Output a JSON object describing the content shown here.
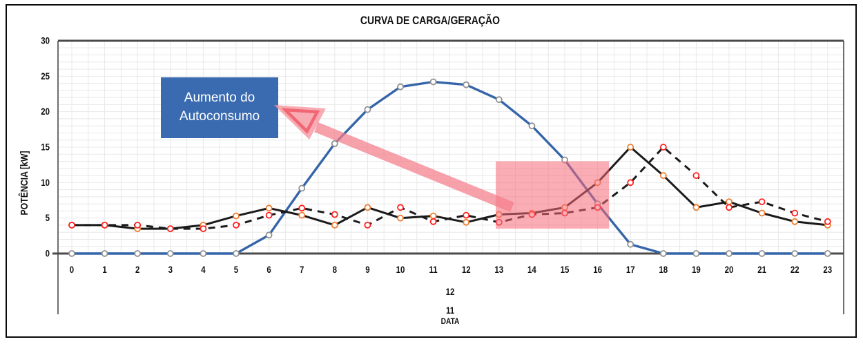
{
  "chart_data": {
    "type": "line",
    "title": "CURVA DE CARGA/GERAÇÃO",
    "x_axis": {
      "title": "DATA",
      "ticks": [
        "0",
        "1",
        "2",
        "3",
        "4",
        "5",
        "6",
        "7",
        "8",
        "9",
        "10",
        "11",
        "12",
        "13",
        "14",
        "15",
        "16",
        "17",
        "18",
        "19",
        "20",
        "21",
        "22",
        "23"
      ],
      "sublabels": [
        "12",
        "11"
      ]
    },
    "y_axis": {
      "title": "POTÊNCIA [kW]",
      "ticks": [
        "0",
        "5",
        "10",
        "15",
        "20",
        "25",
        "30"
      ],
      "range": [
        0,
        30
      ]
    },
    "grid": {
      "visible": true,
      "x_step_hours": 0.5,
      "y_step_kw": 1
    },
    "series": [
      {
        "name": "geracao-fv",
        "description": "blue solid generation curve with gray circle markers",
        "color": "#3465A8",
        "marker_color": "#909090",
        "line_style": "solid",
        "line_width": 3.4,
        "values": [
          0,
          0,
          0,
          0,
          0,
          0,
          2.6,
          9.2,
          15.5,
          20.3,
          23.5,
          24.2,
          23.8,
          21.7,
          18,
          13.2,
          7,
          1.3,
          0,
          0,
          0,
          0,
          0,
          0
        ]
      },
      {
        "name": "carga",
        "description": "black solid load curve with orange circle markers",
        "color": "#1a1a1a",
        "marker_color": "#ED7D31",
        "line_style": "solid",
        "line_width": 3,
        "values": [
          4,
          4,
          3.5,
          3.5,
          4,
          5.3,
          6.4,
          5.4,
          4,
          6.5,
          5,
          5.3,
          4.4,
          5.5,
          5.7,
          6.5,
          10,
          15,
          11,
          6.5,
          7.3,
          5.7,
          4.5,
          4
        ]
      },
      {
        "name": "carga-deslocada",
        "description": "black dashed shifted-load curve with red circle markers",
        "color": "#1a1a1a",
        "marker_color": "#FF2020",
        "line_style": "dashed",
        "line_width": 3,
        "values": [
          4,
          4,
          4,
          3.5,
          3.5,
          4,
          5.4,
          6.4,
          5.5,
          4,
          6.5,
          4.5,
          5.4,
          4.4,
          5.5,
          5.7,
          6.5,
          10,
          15,
          11,
          6.5,
          7.3,
          5.7,
          4.5
        ]
      }
    ],
    "highlight_region": {
      "x_start": 12.9,
      "x_end": 16.35,
      "y_start": 3.5,
      "y_end": 13,
      "color": "rgba(247,105,120,0.55)"
    },
    "annotation": {
      "text_lines": [
        "Aumento do",
        "Autoconsumo"
      ],
      "box_color": "#3A6BB0",
      "text_color": "#FFFFFF",
      "arrow_color": "rgba(244,125,138,0.72)",
      "arrow_head_fill": "rgba(246,150,160,0.8)",
      "arrow_head_outline": "rgba(240,90,105,0.85)"
    }
  }
}
